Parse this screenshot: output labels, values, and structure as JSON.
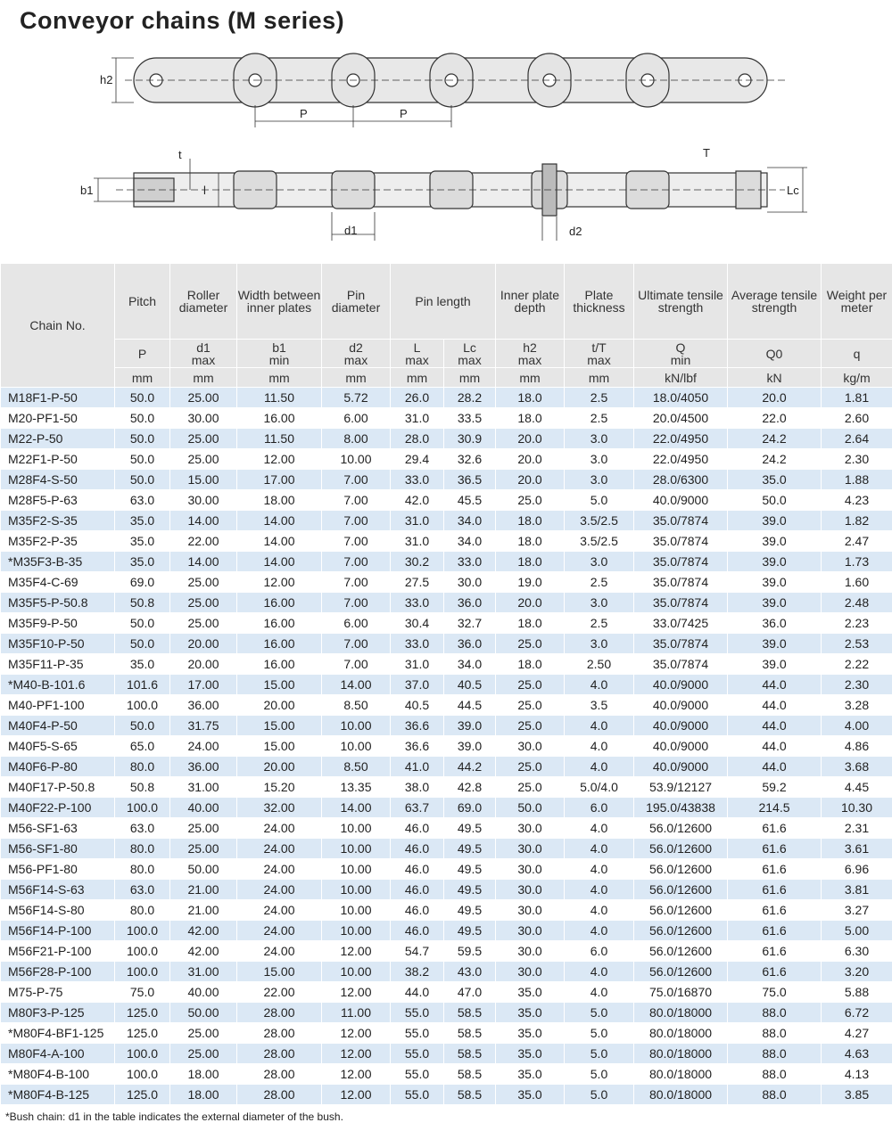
{
  "title": "Conveyor chains (M series)",
  "diagram": {
    "labels": [
      "h2",
      "P",
      "P",
      "t",
      "b1",
      "l",
      "T",
      "Lc",
      "d1",
      "d2"
    ]
  },
  "table": {
    "chain_header": "Chain No.",
    "pin_length_header": "Pin length",
    "columns": [
      {
        "name": "Pitch",
        "symbol": "P",
        "limit": null,
        "unit": "mm"
      },
      {
        "name": "Roller diameter",
        "symbol": "d1",
        "limit": "max",
        "unit": "mm"
      },
      {
        "name": "Width between inner plates",
        "symbol": "b1",
        "limit": "min",
        "unit": "mm"
      },
      {
        "name": "Pin diameter",
        "symbol": "d2",
        "limit": "max",
        "unit": "mm"
      },
      {
        "name": null,
        "symbol": "L",
        "limit": "max",
        "unit": "mm"
      },
      {
        "name": null,
        "symbol": "Lc",
        "limit": "max",
        "unit": "mm"
      },
      {
        "name": "Inner plate depth",
        "symbol": "h2",
        "limit": "max",
        "unit": "mm"
      },
      {
        "name": "Plate thickness",
        "symbol": "t/T",
        "limit": "max",
        "unit": "mm"
      },
      {
        "name": "Ultimate tensile strength",
        "symbol": "Q",
        "limit": "min",
        "unit": "kN/lbf"
      },
      {
        "name": "Average tensile strength",
        "symbol": "Q0",
        "limit": null,
        "unit": "kN"
      },
      {
        "name": "Weight per meter",
        "symbol": "q",
        "limit": null,
        "unit": "kg/m"
      }
    ],
    "rows": [
      [
        "M18F1-P-50",
        "50.0",
        "25.00",
        "11.50",
        "5.72",
        "26.0",
        "28.2",
        "18.0",
        "2.5",
        "18.0/4050",
        "20.0",
        "1.81"
      ],
      [
        "M20-PF1-50",
        "50.0",
        "30.00",
        "16.00",
        "6.00",
        "31.0",
        "33.5",
        "18.0",
        "2.5",
        "20.0/4500",
        "22.0",
        "2.60"
      ],
      [
        "M22-P-50",
        "50.0",
        "25.00",
        "11.50",
        "8.00",
        "28.0",
        "30.9",
        "20.0",
        "3.0",
        "22.0/4950",
        "24.2",
        "2.64"
      ],
      [
        "M22F1-P-50",
        "50.0",
        "25.00",
        "12.00",
        "10.00",
        "29.4",
        "32.6",
        "20.0",
        "3.0",
        "22.0/4950",
        "24.2",
        "2.30"
      ],
      [
        "M28F4-S-50",
        "50.0",
        "15.00",
        "17.00",
        "7.00",
        "33.0",
        "36.5",
        "20.0",
        "3.0",
        "28.0/6300",
        "35.0",
        "1.88"
      ],
      [
        "M28F5-P-63",
        "63.0",
        "30.00",
        "18.00",
        "7.00",
        "42.0",
        "45.5",
        "25.0",
        "5.0",
        "40.0/9000",
        "50.0",
        "4.23"
      ],
      [
        "M35F2-S-35",
        "35.0",
        "14.00",
        "14.00",
        "7.00",
        "31.0",
        "34.0",
        "18.0",
        "3.5/2.5",
        "35.0/7874",
        "39.0",
        "1.82"
      ],
      [
        "M35F2-P-35",
        "35.0",
        "22.00",
        "14.00",
        "7.00",
        "31.0",
        "34.0",
        "18.0",
        "3.5/2.5",
        "35.0/7874",
        "39.0",
        "2.47"
      ],
      [
        "*M35F3-B-35",
        "35.0",
        "14.00",
        "14.00",
        "7.00",
        "30.2",
        "33.0",
        "18.0",
        "3.0",
        "35.0/7874",
        "39.0",
        "1.73"
      ],
      [
        "M35F4-C-69",
        "69.0",
        "25.00",
        "12.00",
        "7.00",
        "27.5",
        "30.0",
        "19.0",
        "2.5",
        "35.0/7874",
        "39.0",
        "1.60"
      ],
      [
        "M35F5-P-50.8",
        "50.8",
        "25.00",
        "16.00",
        "7.00",
        "33.0",
        "36.0",
        "20.0",
        "3.0",
        "35.0/7874",
        "39.0",
        "2.48"
      ],
      [
        "M35F9-P-50",
        "50.0",
        "25.00",
        "16.00",
        "6.00",
        "30.4",
        "32.7",
        "18.0",
        "2.5",
        "33.0/7425",
        "36.0",
        "2.23"
      ],
      [
        "M35F10-P-50",
        "50.0",
        "20.00",
        "16.00",
        "7.00",
        "33.0",
        "36.0",
        "25.0",
        "3.0",
        "35.0/7874",
        "39.0",
        "2.53"
      ],
      [
        "M35F11-P-35",
        "35.0",
        "20.00",
        "16.00",
        "7.00",
        "31.0",
        "34.0",
        "18.0",
        "2.50",
        "35.0/7874",
        "39.0",
        "2.22"
      ],
      [
        "*M40-B-101.6",
        "101.6",
        "17.00",
        "15.00",
        "14.00",
        "37.0",
        "40.5",
        "25.0",
        "4.0",
        "40.0/9000",
        "44.0",
        "2.30"
      ],
      [
        "M40-PF1-100",
        "100.0",
        "36.00",
        "20.00",
        "8.50",
        "40.5",
        "44.5",
        "25.0",
        "3.5",
        "40.0/9000",
        "44.0",
        "3.28"
      ],
      [
        "M40F4-P-50",
        "50.0",
        "31.75",
        "15.00",
        "10.00",
        "36.6",
        "39.0",
        "25.0",
        "4.0",
        "40.0/9000",
        "44.0",
        "4.00"
      ],
      [
        "M40F5-S-65",
        "65.0",
        "24.00",
        "15.00",
        "10.00",
        "36.6",
        "39.0",
        "30.0",
        "4.0",
        "40.0/9000",
        "44.0",
        "4.86"
      ],
      [
        "M40F6-P-80",
        "80.0",
        "36.00",
        "20.00",
        "8.50",
        "41.0",
        "44.2",
        "25.0",
        "4.0",
        "40.0/9000",
        "44.0",
        "3.68"
      ],
      [
        "M40F17-P-50.8",
        "50.8",
        "31.00",
        "15.20",
        "13.35",
        "38.0",
        "42.8",
        "25.0",
        "5.0/4.0",
        "53.9/12127",
        "59.2",
        "4.45"
      ],
      [
        "M40F22-P-100",
        "100.0",
        "40.00",
        "32.00",
        "14.00",
        "63.7",
        "69.0",
        "50.0",
        "6.0",
        "195.0/43838",
        "214.5",
        "10.30"
      ],
      [
        "M56-SF1-63",
        "63.0",
        "25.00",
        "24.00",
        "10.00",
        "46.0",
        "49.5",
        "30.0",
        "4.0",
        "56.0/12600",
        "61.6",
        "2.31"
      ],
      [
        "M56-SF1-80",
        "80.0",
        "25.00",
        "24.00",
        "10.00",
        "46.0",
        "49.5",
        "30.0",
        "4.0",
        "56.0/12600",
        "61.6",
        "3.61"
      ],
      [
        "M56-PF1-80",
        "80.0",
        "50.00",
        "24.00",
        "10.00",
        "46.0",
        "49.5",
        "30.0",
        "4.0",
        "56.0/12600",
        "61.6",
        "6.96"
      ],
      [
        "M56F14-S-63",
        "63.0",
        "21.00",
        "24.00",
        "10.00",
        "46.0",
        "49.5",
        "30.0",
        "4.0",
        "56.0/12600",
        "61.6",
        "3.81"
      ],
      [
        "M56F14-S-80",
        "80.0",
        "21.00",
        "24.00",
        "10.00",
        "46.0",
        "49.5",
        "30.0",
        "4.0",
        "56.0/12600",
        "61.6",
        "3.27"
      ],
      [
        "M56F14-P-100",
        "100.0",
        "42.00",
        "24.00",
        "10.00",
        "46.0",
        "49.5",
        "30.0",
        "4.0",
        "56.0/12600",
        "61.6",
        "5.00"
      ],
      [
        "M56F21-P-100",
        "100.0",
        "42.00",
        "24.00",
        "12.00",
        "54.7",
        "59.5",
        "30.0",
        "6.0",
        "56.0/12600",
        "61.6",
        "6.30"
      ],
      [
        "M56F28-P-100",
        "100.0",
        "31.00",
        "15.00",
        "10.00",
        "38.2",
        "43.0",
        "30.0",
        "4.0",
        "56.0/12600",
        "61.6",
        "3.20"
      ],
      [
        "M75-P-75",
        "75.0",
        "40.00",
        "22.00",
        "12.00",
        "44.0",
        "47.0",
        "35.0",
        "4.0",
        "75.0/16870",
        "75.0",
        "5.88"
      ],
      [
        "M80F3-P-125",
        "125.0",
        "50.00",
        "28.00",
        "11.00",
        "55.0",
        "58.5",
        "35.0",
        "5.0",
        "80.0/18000",
        "88.0",
        "6.72"
      ],
      [
        "*M80F4-BF1-125",
        "125.0",
        "25.00",
        "28.00",
        "12.00",
        "55.0",
        "58.5",
        "35.0",
        "5.0",
        "80.0/18000",
        "88.0",
        "4.27"
      ],
      [
        "M80F4-A-100",
        "100.0",
        "25.00",
        "28.00",
        "12.00",
        "55.0",
        "58.5",
        "35.0",
        "5.0",
        "80.0/18000",
        "88.0",
        "4.63"
      ],
      [
        "*M80F4-B-100",
        "100.0",
        "18.00",
        "28.00",
        "12.00",
        "55.0",
        "58.5",
        "35.0",
        "5.0",
        "80.0/18000",
        "88.0",
        "4.13"
      ],
      [
        "*M80F4-B-125",
        "125.0",
        "18.00",
        "28.00",
        "12.00",
        "55.0",
        "58.5",
        "35.0",
        "5.0",
        "80.0/18000",
        "88.0",
        "3.85"
      ]
    ]
  },
  "footnote": "*Bush chain: d1 in the table indicates the external diameter of the bush."
}
